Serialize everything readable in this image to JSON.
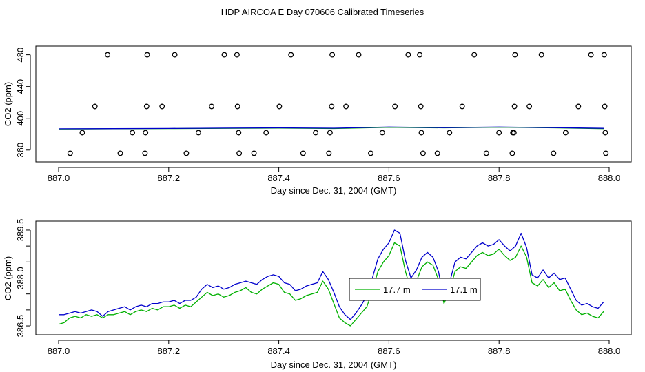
{
  "page_title": "HDP AIRCOA E  Day 070606  Calibrated Timeseries",
  "colors": {
    "green": "#00b000",
    "blue": "#0000cc",
    "axis": "#000000"
  },
  "chart_data": [
    {
      "type": "scatter",
      "xlabel": "Day since Dec. 31, 2004 (GMT)",
      "ylabel": "CO2 (ppm)",
      "xlim": [
        887.0,
        888.0
      ],
      "ylim": [
        352,
        484
      ],
      "xticks": [
        "887.0",
        "887.2",
        "887.4",
        "887.6",
        "887.8",
        "888.0"
      ],
      "xtick_values": [
        887.0,
        887.2,
        887.4,
        887.6,
        887.8,
        888.0
      ],
      "yticks": [
        "360",
        "400",
        "440",
        "480"
      ],
      "ytick_values": [
        360,
        400,
        440,
        480
      ],
      "grid": false,
      "points": [
        [
          887.089,
          480
        ],
        [
          887.161,
          480
        ],
        [
          887.211,
          480
        ],
        [
          887.301,
          480
        ],
        [
          887.324,
          480
        ],
        [
          887.422,
          480
        ],
        [
          887.497,
          480
        ],
        [
          887.545,
          480
        ],
        [
          887.635,
          480
        ],
        [
          887.656,
          480
        ],
        [
          887.755,
          480
        ],
        [
          887.829,
          480
        ],
        [
          887.877,
          480
        ],
        [
          887.967,
          480
        ],
        [
          887.991,
          480
        ],
        [
          887.066,
          415
        ],
        [
          887.16,
          415
        ],
        [
          887.188,
          415
        ],
        [
          887.278,
          415
        ],
        [
          887.325,
          415
        ],
        [
          887.401,
          415
        ],
        [
          887.496,
          415
        ],
        [
          887.522,
          415
        ],
        [
          887.611,
          415
        ],
        [
          887.658,
          415
        ],
        [
          887.733,
          415
        ],
        [
          887.828,
          415
        ],
        [
          887.855,
          415
        ],
        [
          887.944,
          415
        ],
        [
          887.992,
          415
        ],
        [
          887.043,
          382
        ],
        [
          887.134,
          382
        ],
        [
          887.158,
          382
        ],
        [
          887.254,
          382
        ],
        [
          887.327,
          382
        ],
        [
          887.377,
          382
        ],
        [
          887.467,
          382
        ],
        [
          887.493,
          382
        ],
        [
          887.588,
          382
        ],
        [
          887.659,
          382
        ],
        [
          887.71,
          382
        ],
        [
          887.8,
          382
        ],
        [
          887.825,
          382
        ],
        [
          887.827,
          382
        ],
        [
          887.921,
          382
        ],
        [
          887.993,
          382
        ],
        [
          887.021,
          356
        ],
        [
          887.112,
          356
        ],
        [
          887.157,
          356
        ],
        [
          887.232,
          356
        ],
        [
          887.328,
          356
        ],
        [
          887.355,
          356
        ],
        [
          887.444,
          356
        ],
        [
          887.491,
          356
        ],
        [
          887.567,
          356
        ],
        [
          887.662,
          356
        ],
        [
          887.688,
          356
        ],
        [
          887.777,
          356
        ],
        [
          887.824,
          356
        ],
        [
          887.899,
          356
        ],
        [
          887.994,
          356
        ]
      ],
      "series": [
        {
          "name": "17.7 m",
          "color": "#00b000",
          "x": [
            887.0,
            887.1,
            887.2,
            887.3,
            887.4,
            887.5,
            887.6,
            887.7,
            887.8,
            887.9,
            887.99
          ],
          "y": [
            386.6,
            386.8,
            387.1,
            387.4,
            387.7,
            387.2,
            388.7,
            388.0,
            388.8,
            388.0,
            387.0
          ]
        },
        {
          "name": "17.1 m",
          "color": "#0000cc",
          "x": [
            887.0,
            887.1,
            887.2,
            887.3,
            887.4,
            887.5,
            887.6,
            887.7,
            887.8,
            887.9,
            887.99
          ],
          "y": [
            386.8,
            387.0,
            387.3,
            387.7,
            388.0,
            387.6,
            389.1,
            388.3,
            389.1,
            388.3,
            387.4
          ]
        }
      ]
    },
    {
      "type": "line",
      "xlabel": "Day since Dec. 31, 2004 (GMT)",
      "ylabel": "CO2 (ppm)",
      "xlim": [
        887.0,
        888.0
      ],
      "ylim": [
        386.35,
        389.65
      ],
      "xticks": [
        "887.0",
        "887.2",
        "887.4",
        "887.6",
        "887.8",
        "888.0"
      ],
      "xtick_values": [
        887.0,
        887.2,
        887.4,
        887.6,
        887.8,
        888.0
      ],
      "yticks": [
        "386.5",
        "388.0",
        "389.5"
      ],
      "ytick_values": [
        386.5,
        388.0,
        389.5
      ],
      "minor_yticks": [
        387.0,
        387.5,
        388.5,
        389.0
      ],
      "grid": false,
      "legend": "center",
      "series": [
        {
          "name": "17.7 m",
          "color": "#00b000",
          "x": [
            887.0,
            887.01,
            887.02,
            887.03,
            887.04,
            887.05,
            887.06,
            887.07,
            887.08,
            887.09,
            887.1,
            887.11,
            887.12,
            887.13,
            887.14,
            887.15,
            887.16,
            887.17,
            887.18,
            887.19,
            887.2,
            887.21,
            887.22,
            887.23,
            887.24,
            887.25,
            887.26,
            887.27,
            887.28,
            887.29,
            887.3,
            887.31,
            887.32,
            887.33,
            887.34,
            887.35,
            887.36,
            887.37,
            887.38,
            887.39,
            887.4,
            887.41,
            887.42,
            887.43,
            887.44,
            887.45,
            887.46,
            887.47,
            887.48,
            887.49,
            887.5,
            887.51,
            887.52,
            887.53,
            887.54,
            887.55,
            887.56,
            887.57,
            887.58,
            887.59,
            887.6,
            887.61,
            887.62,
            887.63,
            887.64,
            887.65,
            887.66,
            887.67,
            887.68,
            887.69,
            887.7,
            887.71,
            887.72,
            887.73,
            887.74,
            887.75,
            887.76,
            887.77,
            887.78,
            887.79,
            887.8,
            887.81,
            887.82,
            887.83,
            887.84,
            887.85,
            887.86,
            887.87,
            887.88,
            887.89,
            887.9,
            887.91,
            887.92,
            887.93,
            887.94,
            887.95,
            887.96,
            887.97,
            887.98,
            887.99
          ],
          "y": [
            386.55,
            386.6,
            386.75,
            386.8,
            386.75,
            386.85,
            386.8,
            386.85,
            386.75,
            386.85,
            386.85,
            386.9,
            386.95,
            386.85,
            386.95,
            387.0,
            386.95,
            387.05,
            387.0,
            387.1,
            387.1,
            387.15,
            387.05,
            387.15,
            387.1,
            387.25,
            387.4,
            387.55,
            387.45,
            387.5,
            387.4,
            387.45,
            387.55,
            387.6,
            387.7,
            387.55,
            387.5,
            387.65,
            387.75,
            387.85,
            387.8,
            387.55,
            387.5,
            387.3,
            387.35,
            387.45,
            387.5,
            387.55,
            387.9,
            387.65,
            387.2,
            386.75,
            386.6,
            386.5,
            386.7,
            386.9,
            387.1,
            387.6,
            388.2,
            388.5,
            388.7,
            389.1,
            389.0,
            388.2,
            387.6,
            387.9,
            388.35,
            388.5,
            388.4,
            387.95,
            387.2,
            387.6,
            388.2,
            388.35,
            388.3,
            388.5,
            388.7,
            388.8,
            388.7,
            388.75,
            388.9,
            388.7,
            388.55,
            388.65,
            389.0,
            388.65,
            387.85,
            387.75,
            387.95,
            387.7,
            387.85,
            387.6,
            387.65,
            387.3,
            387.0,
            386.85,
            386.9,
            386.8,
            386.75,
            386.95
          ]
        },
        {
          "name": "17.1 m",
          "color": "#0000cc",
          "x": [
            887.0,
            887.01,
            887.02,
            887.03,
            887.04,
            887.05,
            887.06,
            887.07,
            887.08,
            887.09,
            887.1,
            887.11,
            887.12,
            887.13,
            887.14,
            887.15,
            887.16,
            887.17,
            887.18,
            887.19,
            887.2,
            887.21,
            887.22,
            887.23,
            887.24,
            887.25,
            887.26,
            887.27,
            887.28,
            887.29,
            887.3,
            887.31,
            887.32,
            887.33,
            887.34,
            887.35,
            887.36,
            887.37,
            887.38,
            887.39,
            887.4,
            887.41,
            887.42,
            887.43,
            887.44,
            887.45,
            887.46,
            887.47,
            887.48,
            887.49,
            887.5,
            887.51,
            887.52,
            887.53,
            887.54,
            887.55,
            887.56,
            887.57,
            887.58,
            887.59,
            887.6,
            887.61,
            887.62,
            887.63,
            887.64,
            887.65,
            887.66,
            887.67,
            887.68,
            887.69,
            887.7,
            887.71,
            887.72,
            887.73,
            887.74,
            887.75,
            887.76,
            887.77,
            887.78,
            887.79,
            887.8,
            887.81,
            887.82,
            887.83,
            887.84,
            887.85,
            887.86,
            887.87,
            887.88,
            887.89,
            887.9,
            887.91,
            887.92,
            887.93,
            887.94,
            887.95,
            887.96,
            887.97,
            887.98,
            887.99
          ],
          "y": [
            386.85,
            386.85,
            386.9,
            386.95,
            386.9,
            386.95,
            387.0,
            386.95,
            386.8,
            386.95,
            387.0,
            387.05,
            387.1,
            387.0,
            387.1,
            387.15,
            387.1,
            387.2,
            387.2,
            387.25,
            387.25,
            387.3,
            387.2,
            387.3,
            387.3,
            387.4,
            387.65,
            387.8,
            387.7,
            387.75,
            387.65,
            387.7,
            387.8,
            387.85,
            387.9,
            387.85,
            387.8,
            387.95,
            388.05,
            388.1,
            388.05,
            387.85,
            387.8,
            387.6,
            387.65,
            387.75,
            387.8,
            387.85,
            388.2,
            387.95,
            387.55,
            387.1,
            386.85,
            386.7,
            386.9,
            387.15,
            387.45,
            388.0,
            388.6,
            388.9,
            389.1,
            389.5,
            389.4,
            388.55,
            388.0,
            388.25,
            388.65,
            388.8,
            388.65,
            388.2,
            387.35,
            387.85,
            388.5,
            388.65,
            388.6,
            388.8,
            389.0,
            389.1,
            389.0,
            389.05,
            389.2,
            389.0,
            388.85,
            389.0,
            389.4,
            388.95,
            388.1,
            388.0,
            388.25,
            388.0,
            388.15,
            387.95,
            388.0,
            387.65,
            387.3,
            387.15,
            387.2,
            387.1,
            387.05,
            387.25
          ]
        }
      ]
    }
  ]
}
